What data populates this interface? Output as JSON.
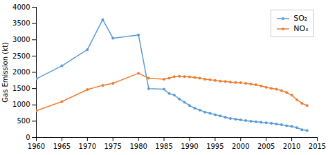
{
  "chart_data": {
    "type": "line",
    "x": [
      1960,
      1965,
      1970,
      1973,
      1975,
      1980,
      1982,
      1985,
      1986,
      1987,
      1988,
      1989,
      1990,
      1991,
      1992,
      1993,
      1994,
      1995,
      1996,
      1997,
      1998,
      1999,
      2000,
      2001,
      2002,
      2003,
      2004,
      2005,
      2006,
      2007,
      2008,
      2009,
      2010,
      2011,
      2012,
      2013
    ],
    "series": [
      {
        "name": "SO₂",
        "color": "#5B9BD5",
        "values": [
          1800,
          2200,
          2700,
          3620,
          3050,
          3150,
          1500,
          1480,
          1350,
          1300,
          1180,
          1080,
          980,
          900,
          840,
          780,
          740,
          700,
          660,
          620,
          580,
          560,
          540,
          520,
          495,
          480,
          465,
          450,
          435,
          415,
          390,
          360,
          340,
          300,
          240,
          210
        ]
      },
      {
        "name": "NOₓ",
        "color": "#ED7D31",
        "values": [
          820,
          1100,
          1470,
          1600,
          1660,
          1970,
          1820,
          1790,
          1820,
          1870,
          1880,
          1870,
          1860,
          1840,
          1820,
          1790,
          1770,
          1750,
          1730,
          1720,
          1700,
          1690,
          1680,
          1660,
          1640,
          1620,
          1580,
          1540,
          1510,
          1480,
          1440,
          1380,
          1300,
          1160,
          1050,
          980
        ]
      }
    ],
    "ylabel": "Gas Emission (kt)",
    "xlim": [
      1960,
      2015
    ],
    "ylim": [
      0,
      4000
    ],
    "xticks": [
      1960,
      1965,
      1970,
      1975,
      1980,
      1985,
      1990,
      1995,
      2000,
      2005,
      2010,
      2015
    ],
    "yticks": [
      0,
      500,
      1000,
      1500,
      2000,
      2500,
      3000,
      3500,
      4000
    ],
    "marker": "o",
    "legend": "upper right",
    "grid": false
  }
}
